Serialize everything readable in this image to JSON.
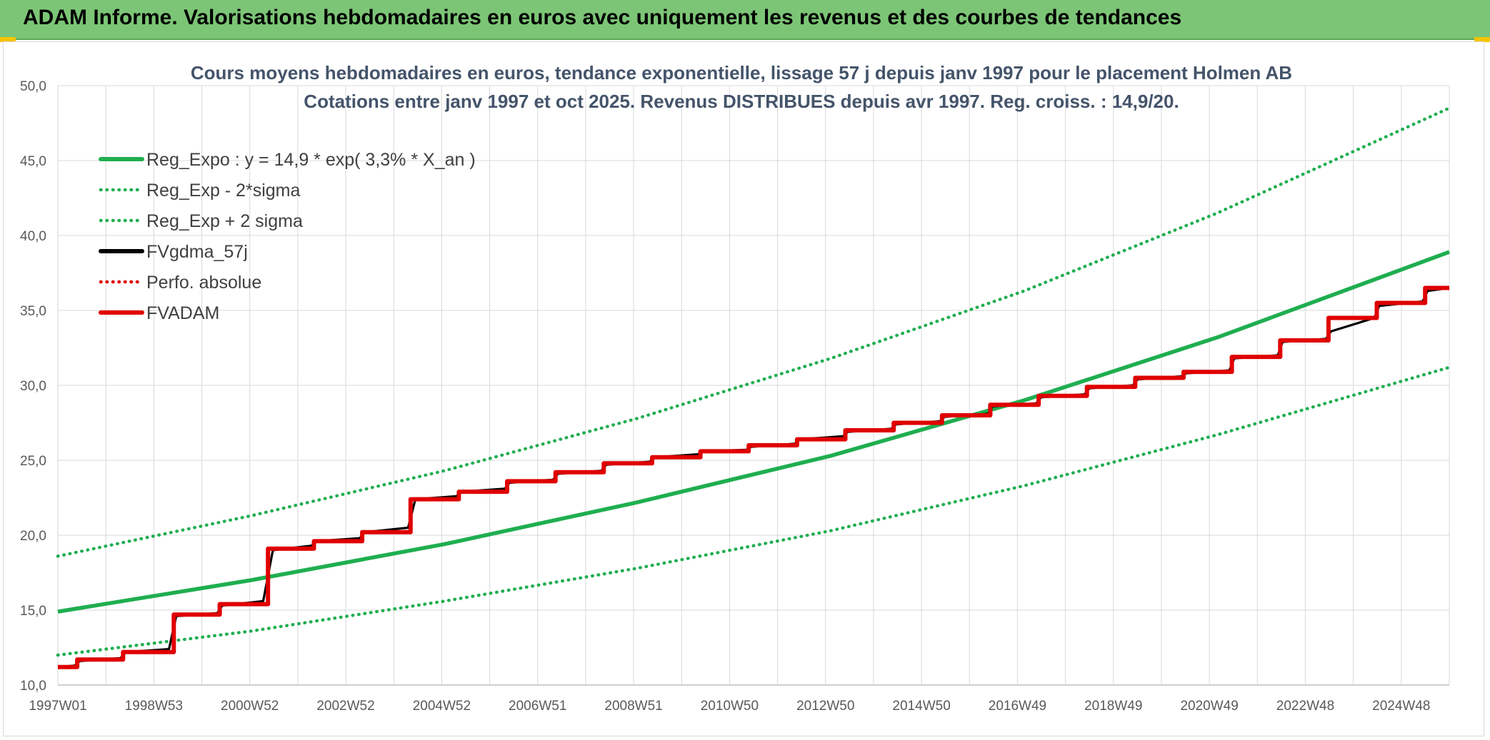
{
  "header": {
    "title": "ADAM Informe. Valorisations hebdomadaires en euros avec uniquement les revenus et des courbes de tendances"
  },
  "chart_data": {
    "type": "line",
    "title_lines": [
      "Cours moyens hebdomadaires en euros, tendance exponentielle, lissage 57 j depuis janv 1997 pour le placement Holmen AB",
      "Cotations entre janv 1997 et oct 2025. Revenus DISTRIBUES depuis avr 1997. Reg. croiss. : 14,9/20."
    ],
    "x_range": [
      "1997W01",
      "2025W44"
    ],
    "x_tick_labels": [
      "1997W01",
      "1998W53",
      "2000W52",
      "2002W52",
      "2004W52",
      "2006W51",
      "2008W51",
      "2010W50",
      "2012W50",
      "2014W50",
      "2016W49",
      "2018W49",
      "2020W49",
      "2022W48",
      "2024W48"
    ],
    "ylim": [
      10,
      50
    ],
    "y_ticks": [
      "10,0",
      "15,0",
      "20,0",
      "25,0",
      "30,0",
      "35,0",
      "40,0",
      "45,0",
      "50,0"
    ],
    "grid": true,
    "legend_position": "top-left",
    "series": [
      {
        "name": "Reg_Expo : y = 14,9 * exp( 3,3% *  X_an )",
        "color": "#1fae50",
        "style": "solid",
        "x": [
          1997.0,
          2001.0,
          2005.0,
          2009.0,
          2013.0,
          2017.0,
          2021.0,
          2025.8
        ],
        "values": [
          14.9,
          17.0,
          19.4,
          22.2,
          25.3,
          29.0,
          33.2,
          38.9
        ]
      },
      {
        "name": "Reg_Exp - 2*sigma",
        "color": "#1fae50",
        "style": "dotted",
        "x": [
          1997.0,
          2001.0,
          2005.0,
          2009.0,
          2013.0,
          2017.0,
          2021.0,
          2025.8
        ],
        "values": [
          12.0,
          13.6,
          15.6,
          17.8,
          20.3,
          23.3,
          26.7,
          31.2
        ]
      },
      {
        "name": "Reg_Exp + 2 sigma",
        "color": "#1fae50",
        "style": "dotted",
        "x": [
          1997.0,
          2001.0,
          2005.0,
          2009.0,
          2013.0,
          2017.0,
          2021.0,
          2025.8
        ],
        "values": [
          18.6,
          21.3,
          24.3,
          27.8,
          31.8,
          36.3,
          41.5,
          48.5
        ]
      },
      {
        "name": "FVgdma_57j",
        "color": "#000000",
        "style": "solid",
        "x": [
          1997.0,
          1997.35,
          1997.45,
          1998.3,
          1998.4,
          1999.3,
          1999.45,
          2000.3,
          2000.4,
          2001.25,
          2001.45,
          2002.25,
          2002.35,
          2003.25,
          2003.35,
          2004.25,
          2004.4,
          2005.25,
          2005.35,
          2006.25,
          2006.35,
          2007.25,
          2007.35,
          2008.25,
          2008.35,
          2009.25,
          2009.35,
          2010.25,
          2010.35,
          2011.25,
          2011.35,
          2012.25,
          2012.35,
          2013.25,
          2013.35,
          2014.25,
          2014.35,
          2015.25,
          2015.35,
          2016.25,
          2016.35,
          2017.25,
          2017.35,
          2018.25,
          2018.35,
          2019.25,
          2019.35,
          2020.25,
          2020.35,
          2021.25,
          2021.35,
          2022.25,
          2022.35,
          2023.25,
          2023.35,
          2024.25,
          2024.35,
          2025.25,
          2025.35,
          2025.8
        ],
        "values": [
          11.2,
          11.3,
          11.6,
          11.8,
          12.2,
          12.4,
          14.6,
          14.8,
          15.3,
          15.6,
          19.0,
          19.3,
          19.6,
          19.8,
          20.2,
          20.5,
          22.4,
          22.6,
          22.9,
          23.1,
          23.5,
          23.7,
          24.1,
          24.3,
          24.7,
          24.9,
          25.2,
          25.4,
          25.6,
          25.7,
          25.9,
          26.1,
          26.4,
          26.6,
          26.9,
          27.1,
          27.4,
          27.6,
          27.9,
          28.1,
          28.6,
          28.8,
          29.2,
          29.4,
          29.8,
          30.0,
          30.4,
          30.6,
          30.8,
          31.0,
          31.8,
          32.0,
          32.9,
          33.1,
          33.6,
          34.5,
          35.3,
          35.6,
          36.3,
          36.5
        ]
      },
      {
        "name": "Perfo. absolue",
        "color": "#e00000",
        "style": "dotted",
        "x": [
          1997.0,
          1997.4,
          1997.4,
          1998.35,
          1998.35,
          1999.4,
          1999.4,
          2000.35,
          2000.35,
          2001.35,
          2001.35,
          2002.3,
          2002.3,
          2003.3,
          2003.3,
          2004.3,
          2004.3,
          2005.3,
          2005.3,
          2006.3,
          2006.3,
          2007.3,
          2007.3,
          2008.3,
          2008.3,
          2009.3,
          2009.3,
          2010.3,
          2010.3,
          2011.3,
          2011.3,
          2012.3,
          2012.3,
          2013.3,
          2013.3,
          2014.3,
          2014.3,
          2015.3,
          2015.3,
          2016.3,
          2016.3,
          2017.3,
          2017.3,
          2018.3,
          2018.3,
          2019.3,
          2019.3,
          2020.3,
          2020.3,
          2021.3,
          2021.3,
          2022.3,
          2022.3,
          2023.3,
          2023.3,
          2024.3,
          2024.3,
          2025.3,
          2025.3,
          2025.8
        ],
        "values": [
          11.2,
          11.2,
          11.7,
          11.7,
          12.2,
          12.2,
          14.7,
          14.7,
          15.4,
          15.4,
          19.1,
          19.1,
          19.6,
          19.6,
          20.2,
          20.2,
          22.4,
          22.4,
          22.9,
          22.9,
          23.6,
          23.6,
          24.2,
          24.2,
          24.8,
          24.8,
          25.2,
          25.2,
          25.6,
          25.6,
          26.0,
          26.0,
          26.4,
          26.4,
          27.0,
          27.0,
          27.5,
          27.5,
          28.0,
          28.0,
          28.7,
          28.7,
          29.3,
          29.3,
          29.9,
          29.9,
          30.5,
          30.5,
          30.9,
          30.9,
          31.9,
          31.9,
          33.0,
          33.0,
          34.5,
          34.5,
          35.5,
          35.5,
          36.5,
          36.5
        ]
      },
      {
        "name": "FVADAM",
        "color": "#e00000",
        "style": "solid",
        "x": [
          1997.0,
          1997.4,
          1997.4,
          1998.35,
          1998.35,
          1999.4,
          1999.4,
          2000.35,
          2000.35,
          2001.35,
          2001.35,
          2002.3,
          2002.3,
          2003.3,
          2003.3,
          2004.3,
          2004.3,
          2005.3,
          2005.3,
          2006.3,
          2006.3,
          2007.3,
          2007.3,
          2008.3,
          2008.3,
          2009.3,
          2009.3,
          2010.3,
          2010.3,
          2011.3,
          2011.3,
          2012.3,
          2012.3,
          2013.3,
          2013.3,
          2014.3,
          2014.3,
          2015.3,
          2015.3,
          2016.3,
          2016.3,
          2017.3,
          2017.3,
          2018.3,
          2018.3,
          2019.3,
          2019.3,
          2020.3,
          2020.3,
          2021.3,
          2021.3,
          2022.3,
          2022.3,
          2023.3,
          2023.3,
          2024.3,
          2024.3,
          2025.3,
          2025.3,
          2025.8
        ],
        "values": [
          11.2,
          11.2,
          11.7,
          11.7,
          12.2,
          12.2,
          14.7,
          14.7,
          15.4,
          15.4,
          19.1,
          19.1,
          19.6,
          19.6,
          20.2,
          20.2,
          22.4,
          22.4,
          22.9,
          22.9,
          23.6,
          23.6,
          24.2,
          24.2,
          24.8,
          24.8,
          25.2,
          25.2,
          25.6,
          25.6,
          26.0,
          26.0,
          26.4,
          26.4,
          27.0,
          27.0,
          27.5,
          27.5,
          28.0,
          28.0,
          28.7,
          28.7,
          29.3,
          29.3,
          29.9,
          29.9,
          30.5,
          30.5,
          30.9,
          30.9,
          31.9,
          31.9,
          33.0,
          33.0,
          34.5,
          34.5,
          35.5,
          35.5,
          36.5,
          36.5
        ]
      }
    ]
  }
}
